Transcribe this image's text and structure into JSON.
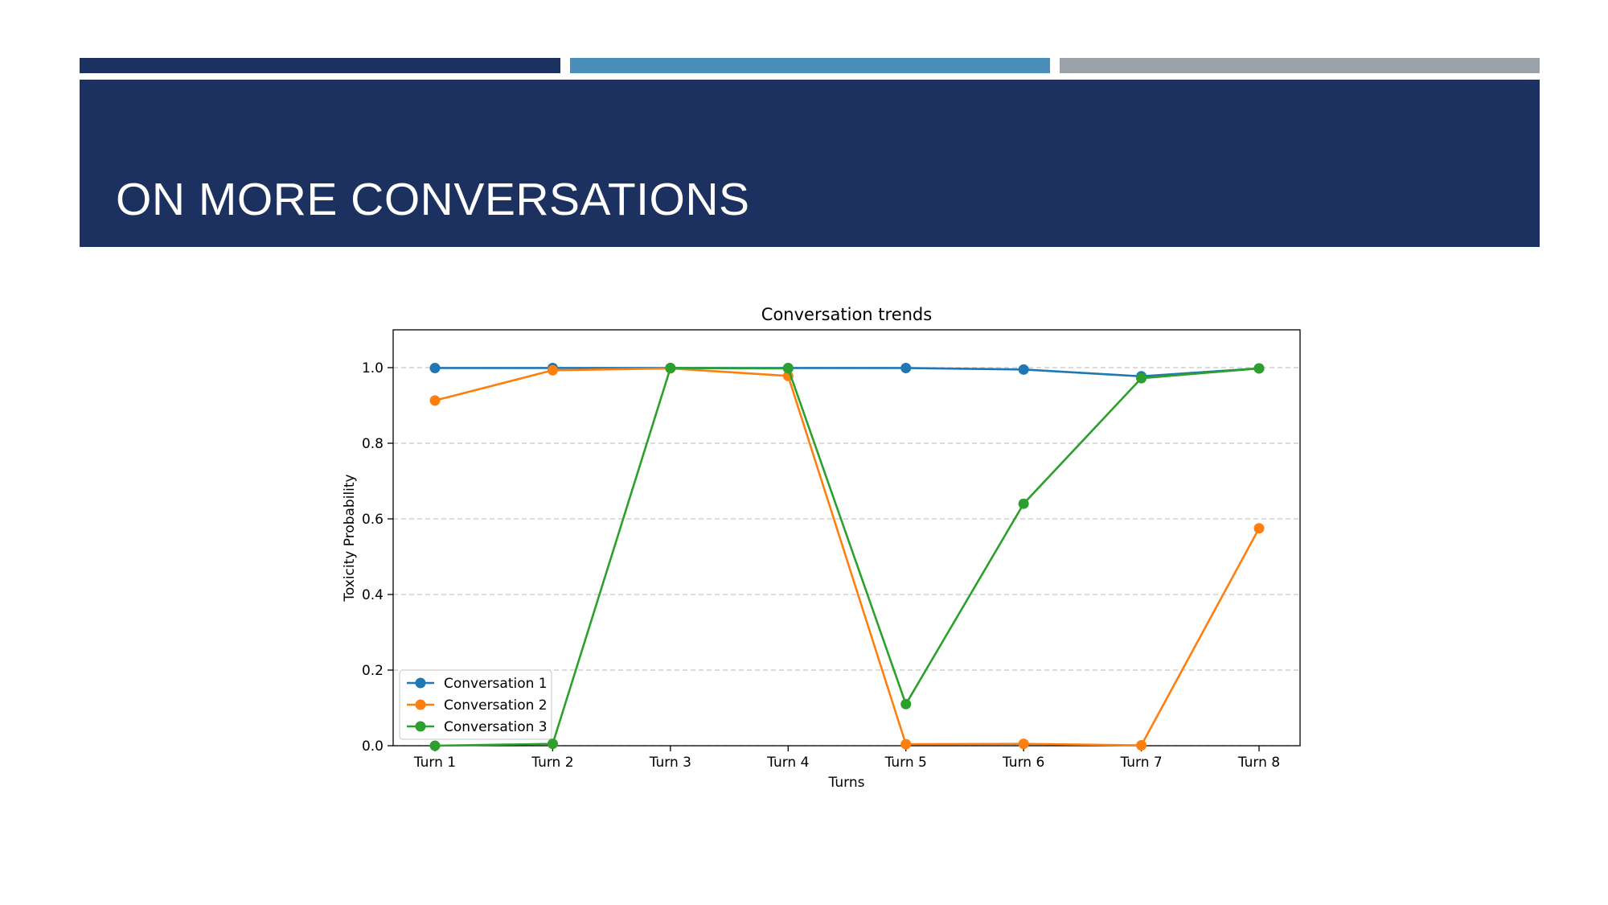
{
  "slide": {
    "title": "ON MORE CONVERSATIONS",
    "colors": {
      "navy": "#1C3160",
      "accent_blue": "#4A8FBA",
      "gray": "#9AA1A8",
      "title_text": "#FFFFFF"
    }
  },
  "chart_data": {
    "type": "line",
    "title": "Conversation trends",
    "xlabel": "Turns",
    "ylabel": "Toxicity Probability",
    "categories": [
      "Turn 1",
      "Turn 2",
      "Turn 3",
      "Turn 4",
      "Turn 5",
      "Turn 6",
      "Turn 7",
      "Turn 8"
    ],
    "ylim": [
      0,
      1.1
    ],
    "yticks": [
      "0.0",
      "0.2",
      "0.4",
      "0.6",
      "0.8",
      "1.0"
    ],
    "grid": "horizontal dashed",
    "legend_position": "lower-left",
    "marker": "circle",
    "series": [
      {
        "name": "Conversation 1",
        "color": "#1F77B4",
        "values": [
          0.999,
          0.999,
          0.999,
          0.999,
          0.999,
          0.995,
          0.977,
          0.998
        ]
      },
      {
        "name": "Conversation 2",
        "color": "#FF7F0E",
        "values": [
          0.913,
          0.993,
          0.998,
          0.978,
          0.004,
          0.005,
          0.001,
          0.575
        ]
      },
      {
        "name": "Conversation 3",
        "color": "#2CA02C",
        "values": [
          0.0,
          0.005,
          0.999,
          0.998,
          0.11,
          0.64,
          0.972,
          0.998
        ]
      }
    ]
  }
}
